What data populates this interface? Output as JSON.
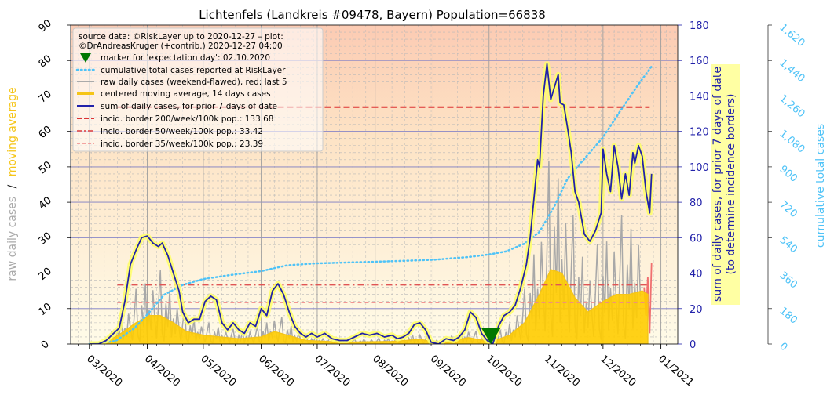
{
  "chart_data": {
    "type": "line",
    "title": "Lichtenfels (Landkreis #09478, Bayern) Population=66838",
    "x_start": "2020-02-20",
    "x_end": "2021-01-10",
    "x_ticks": [
      "03/2020",
      "04/2020",
      "05/2020",
      "06/2020",
      "07/2020",
      "08/2020",
      "09/2020",
      "10/2020",
      "11/2020",
      "12/2020",
      "01/2021"
    ],
    "left_axis": {
      "ticks": [
        "0",
        "10",
        "20",
        "30",
        "40",
        "50",
        "60",
        "70",
        "80",
        "90"
      ],
      "ylim": [
        0,
        90
      ]
    },
    "right_axis": {
      "label_line1": "sum of daily cases, for prior 7 days of date",
      "label_line2": "(to determine incidence borders)",
      "ticks": [
        "0",
        "20",
        "40",
        "60",
        "80",
        "100",
        "120",
        "140",
        "160",
        "180"
      ],
      "ylim": [
        0,
        180
      ]
    },
    "far_right_axis": {
      "label": "cumulative total cases",
      "ticks": [
        "0",
        "180",
        "360",
        "540",
        "720",
        "900",
        "1,080",
        "1,260",
        "1,440",
        "1,620"
      ],
      "ylim": [
        0,
        1620
      ]
    },
    "left_label_parts": {
      "raw": "raw daily cases",
      "sep": "/",
      "avg": "moving average"
    },
    "legend": {
      "source": "source data: ©RiskLayer up to 2020-12-27 – plot:",
      "credit": "©DrAndreasKruger (+contrib.) 2020-12-27 04:00",
      "items": [
        "marker for 'expectation day': 02.10.2020",
        "cumulative total cases reported at RiskLayer",
        "raw daily cases (weekend-flawed), red: last 5",
        "centered moving average, 14 days cases",
        "sum of daily cases, for prior 7 days of date",
        "incid. border 200/week/100k pop.: 133.68",
        "incid. border 50/week/100k pop.: 33.42",
        "incid. border 35/week/100k pop.: 23.39"
      ]
    },
    "incidence_borders": [
      133.68,
      33.42,
      23.39
    ],
    "expectation_day": "2020-10-02",
    "sum7": [
      [
        "2020-03-01",
        0
      ],
      [
        "2020-03-06",
        0
      ],
      [
        "2020-03-10",
        2
      ],
      [
        "2020-03-14",
        6
      ],
      [
        "2020-03-17",
        9
      ],
      [
        "2020-03-20",
        24
      ],
      [
        "2020-03-23",
        45
      ],
      [
        "2020-03-26",
        53
      ],
      [
        "2020-03-29",
        60
      ],
      [
        "2020-04-01",
        61
      ],
      [
        "2020-04-04",
        57
      ],
      [
        "2020-04-07",
        55
      ],
      [
        "2020-04-09",
        57
      ],
      [
        "2020-04-12",
        50
      ],
      [
        "2020-04-15",
        40
      ],
      [
        "2020-04-18",
        30
      ],
      [
        "2020-04-20",
        18
      ],
      [
        "2020-04-23",
        12
      ],
      [
        "2020-04-26",
        14
      ],
      [
        "2020-04-29",
        14
      ],
      [
        "2020-05-02",
        24
      ],
      [
        "2020-05-05",
        27
      ],
      [
        "2020-05-08",
        25
      ],
      [
        "2020-05-11",
        12
      ],
      [
        "2020-05-14",
        8
      ],
      [
        "2020-05-17",
        12
      ],
      [
        "2020-05-20",
        8
      ],
      [
        "2020-05-23",
        6
      ],
      [
        "2020-05-26",
        12
      ],
      [
        "2020-05-29",
        10
      ],
      [
        "2020-06-01",
        20
      ],
      [
        "2020-06-04",
        16
      ],
      [
        "2020-06-07",
        30
      ],
      [
        "2020-06-10",
        34
      ],
      [
        "2020-06-13",
        28
      ],
      [
        "2020-06-16",
        18
      ],
      [
        "2020-06-19",
        10
      ],
      [
        "2020-06-22",
        6
      ],
      [
        "2020-06-25",
        4
      ],
      [
        "2020-06-28",
        6
      ],
      [
        "2020-07-01",
        4
      ],
      [
        "2020-07-05",
        6
      ],
      [
        "2020-07-09",
        3
      ],
      [
        "2020-07-13",
        2
      ],
      [
        "2020-07-17",
        2
      ],
      [
        "2020-07-21",
        4
      ],
      [
        "2020-07-25",
        6
      ],
      [
        "2020-07-29",
        5
      ],
      [
        "2020-08-02",
        6
      ],
      [
        "2020-08-06",
        4
      ],
      [
        "2020-08-10",
        5
      ],
      [
        "2020-08-13",
        3
      ],
      [
        "2020-08-16",
        4
      ],
      [
        "2020-08-19",
        6
      ],
      [
        "2020-08-22",
        11
      ],
      [
        "2020-08-25",
        12
      ],
      [
        "2020-08-28",
        8
      ],
      [
        "2020-08-31",
        1
      ],
      [
        "2020-09-04",
        0
      ],
      [
        "2020-09-08",
        3
      ],
      [
        "2020-09-12",
        2
      ],
      [
        "2020-09-15",
        4
      ],
      [
        "2020-09-18",
        8
      ],
      [
        "2020-09-21",
        18
      ],
      [
        "2020-09-24",
        15
      ],
      [
        "2020-09-27",
        6
      ],
      [
        "2020-09-30",
        2
      ],
      [
        "2020-10-03",
        0
      ],
      [
        "2020-10-06",
        10
      ],
      [
        "2020-10-09",
        16
      ],
      [
        "2020-10-12",
        18
      ],
      [
        "2020-10-15",
        22
      ],
      [
        "2020-10-18",
        32
      ],
      [
        "2020-10-21",
        45
      ],
      [
        "2020-10-23",
        60
      ],
      [
        "2020-10-25",
        82
      ],
      [
        "2020-10-27",
        104
      ],
      [
        "2020-10-28",
        100
      ],
      [
        "2020-10-30",
        140
      ],
      [
        "2020-11-01",
        158
      ],
      [
        "2020-11-03",
        138
      ],
      [
        "2020-11-05",
        145
      ],
      [
        "2020-11-07",
        152
      ],
      [
        "2020-11-08",
        136
      ],
      [
        "2020-11-10",
        135
      ],
      [
        "2020-11-12",
        122
      ],
      [
        "2020-11-14",
        108
      ],
      [
        "2020-11-16",
        86
      ],
      [
        "2020-11-18",
        80
      ],
      [
        "2020-11-21",
        62
      ],
      [
        "2020-11-24",
        58
      ],
      [
        "2020-11-27",
        64
      ],
      [
        "2020-11-30",
        74
      ],
      [
        "2020-12-01",
        110
      ],
      [
        "2020-12-03",
        96
      ],
      [
        "2020-12-05",
        86
      ],
      [
        "2020-12-07",
        112
      ],
      [
        "2020-12-09",
        100
      ],
      [
        "2020-12-11",
        82
      ],
      [
        "2020-12-13",
        96
      ],
      [
        "2020-12-15",
        84
      ],
      [
        "2020-12-17",
        108
      ],
      [
        "2020-12-18",
        102
      ],
      [
        "2020-12-20",
        112
      ],
      [
        "2020-12-22",
        106
      ],
      [
        "2020-12-24",
        86
      ],
      [
        "2020-12-26",
        74
      ],
      [
        "2020-12-27",
        96
      ]
    ],
    "moving_average": [
      [
        "2020-03-01",
        0
      ],
      [
        "2020-03-10",
        0.5
      ],
      [
        "2020-03-18",
        3
      ],
      [
        "2020-03-26",
        6
      ],
      [
        "2020-04-02",
        8
      ],
      [
        "2020-04-08",
        8
      ],
      [
        "2020-04-15",
        6
      ],
      [
        "2020-04-22",
        3.5
      ],
      [
        "2020-05-01",
        2.5
      ],
      [
        "2020-05-10",
        2
      ],
      [
        "2020-05-20",
        1.5
      ],
      [
        "2020-06-01",
        2
      ],
      [
        "2020-06-08",
        3.5
      ],
      [
        "2020-06-15",
        2.5
      ],
      [
        "2020-06-25",
        1
      ],
      [
        "2020-07-15",
        0.5
      ],
      [
        "2020-08-10",
        0.7
      ],
      [
        "2020-08-25",
        1.3
      ],
      [
        "2020-09-05",
        0.3
      ],
      [
        "2020-09-20",
        1.8
      ],
      [
        "2020-10-02",
        0.6
      ],
      [
        "2020-10-12",
        2.5
      ],
      [
        "2020-10-20",
        6
      ],
      [
        "2020-10-28",
        14
      ],
      [
        "2020-11-03",
        21
      ],
      [
        "2020-11-09",
        20
      ],
      [
        "2020-11-16",
        13
      ],
      [
        "2020-11-23",
        9
      ],
      [
        "2020-12-01",
        12
      ],
      [
        "2020-12-08",
        14
      ],
      [
        "2020-12-15",
        14
      ],
      [
        "2020-12-22",
        15
      ],
      [
        "2020-12-25",
        14
      ]
    ],
    "cumulative": [
      [
        "2020-03-01",
        0
      ],
      [
        "2020-03-15",
        15
      ],
      [
        "2020-03-25",
        80
      ],
      [
        "2020-04-02",
        160
      ],
      [
        "2020-04-10",
        250
      ],
      [
        "2020-04-20",
        300
      ],
      [
        "2020-05-01",
        330
      ],
      [
        "2020-05-15",
        350
      ],
      [
        "2020-06-01",
        370
      ],
      [
        "2020-06-15",
        400
      ],
      [
        "2020-07-01",
        410
      ],
      [
        "2020-08-01",
        418
      ],
      [
        "2020-09-01",
        428
      ],
      [
        "2020-09-20",
        442
      ],
      [
        "2020-10-01",
        455
      ],
      [
        "2020-10-10",
        470
      ],
      [
        "2020-10-20",
        510
      ],
      [
        "2020-10-28",
        570
      ],
      [
        "2020-11-05",
        700
      ],
      [
        "2020-11-12",
        840
      ],
      [
        "2020-11-20",
        930
      ],
      [
        "2020-12-01",
        1050
      ],
      [
        "2020-12-10",
        1180
      ],
      [
        "2020-12-20",
        1320
      ],
      [
        "2020-12-27",
        1410
      ]
    ]
  }
}
